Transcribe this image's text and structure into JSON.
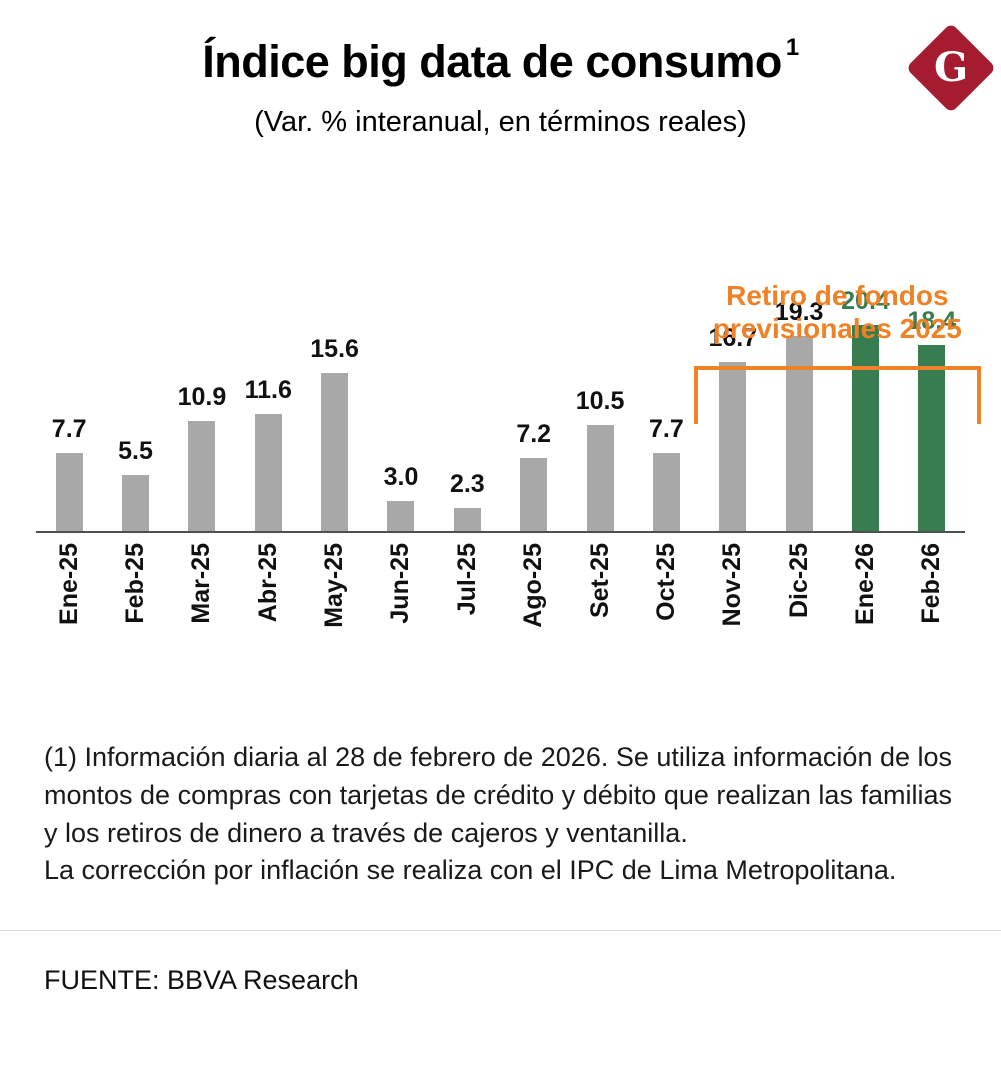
{
  "header": {
    "title": "Índice big data de consumo",
    "title_superscript": "1",
    "subtitle": "(Var. % interanual, en términos reales)",
    "logo_letter": "G"
  },
  "annotation": {
    "line1": "Retiro de fondos",
    "line2": "previsionales 2025",
    "color": "#ef8226"
  },
  "chart_data": {
    "type": "bar",
    "title": "Índice big data de consumo (Var. % interanual, en términos reales)",
    "categories": [
      "Ene-25",
      "Feb-25",
      "Mar-25",
      "Abr-25",
      "May-25",
      "Jun-25",
      "Jul-25",
      "Ago-25",
      "Set-25",
      "Oct-25",
      "Nov-25",
      "Dic-25",
      "Ene-26",
      "Feb-26"
    ],
    "values": [
      7.7,
      5.5,
      10.9,
      11.6,
      15.6,
      3.0,
      2.3,
      7.2,
      10.5,
      7.7,
      16.7,
      19.3,
      20.4,
      18.4
    ],
    "highlight_indices": [
      12,
      13
    ],
    "bar_color": "#a8a8a8",
    "highlight_color": "#377d4f",
    "label_color": "#111111",
    "highlight_label_color": "#377d4f",
    "xlabel": "",
    "ylabel": "",
    "ylim": [
      0,
      22
    ],
    "grid": false,
    "legend": "none",
    "annotation_span": [
      "Nov-25",
      "Feb-26"
    ],
    "annotation_text": "Retiro de fondos previsionales 2025"
  },
  "footnote": {
    "line1": "(1) Información diaria al 28 de febrero de 2026. Se utiliza información de los montos de compras con tarjetas de crédito y débito que realizan las familias y los retiros de dinero a través de cajeros y ventanilla.",
    "line2": "La corrección por inflación se realiza con el IPC de Lima Metropolitana."
  },
  "source": {
    "label": "FUENTE: BBVA Research"
  }
}
